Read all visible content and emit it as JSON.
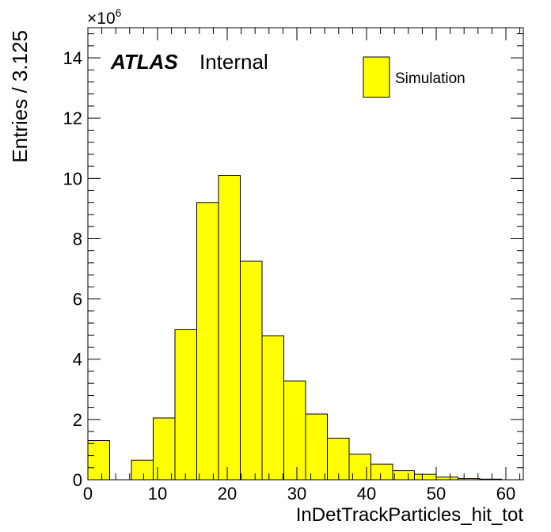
{
  "chart_data": {
    "type": "bar",
    "title": "",
    "xlabel": "InDetTrackParticles_hit_tot",
    "ylabel": "Entries / 3.125",
    "y_multiplier_label": "×10",
    "y_multiplier_exponent": "6",
    "xlim": [
      0,
      62.5
    ],
    "ylim": [
      0,
      15
    ],
    "bin_width": 3.125,
    "bin_edges_start": 0,
    "values": [
      1.3,
      0.0,
      0.65,
      2.05,
      4.98,
      9.2,
      10.1,
      7.25,
      4.78,
      3.28,
      2.18,
      1.38,
      0.85,
      0.52,
      0.3,
      0.18,
      0.09,
      0.04,
      0.02,
      0.0
    ],
    "x_ticks": [
      0,
      10,
      20,
      30,
      40,
      50,
      60
    ],
    "y_ticks": [
      0,
      2,
      4,
      6,
      8,
      10,
      12,
      14
    ],
    "fill_color": "#ffff00",
    "edge_color": "#000000",
    "grid": false,
    "legend": {
      "placement": "top-right",
      "entries": [
        {
          "label": "Simulation",
          "color": "#ffff00"
        }
      ]
    },
    "annotations": {
      "experiment": "ATLAS",
      "status": "Internal"
    }
  }
}
